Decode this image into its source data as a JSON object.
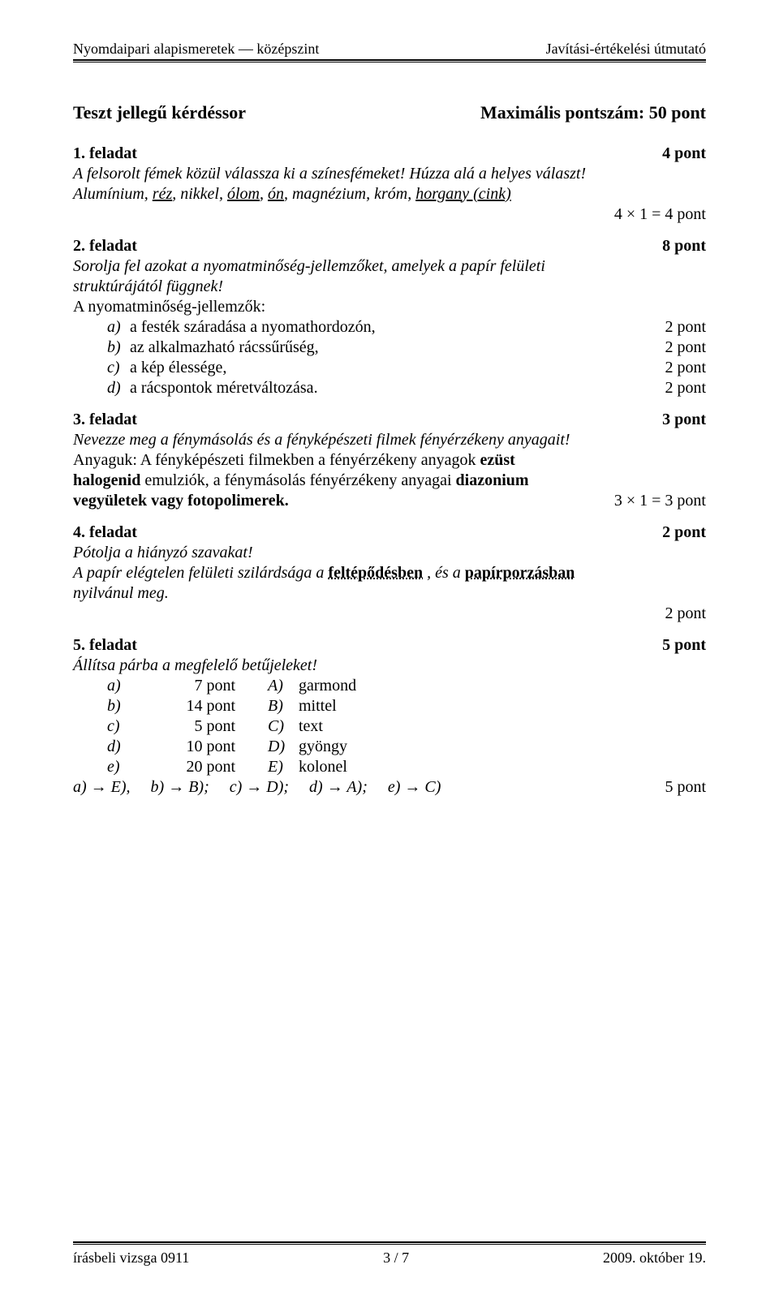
{
  "header": {
    "left": "Nyomdaipari alapismeretek — középszint",
    "right": "Javítási-értékelési útmutató"
  },
  "title": {
    "left": "Teszt jellegű kérdéssor",
    "right": "Maximális pontszám: 50 pont"
  },
  "t1": {
    "head_left": "1. feladat",
    "head_right": "4 pont",
    "q": "A felsorolt fémek közül válassza ki a színesfémeket! Húzza alá a helyes választ!",
    "ans_pre": "Alumínium, ",
    "u1": "réz",
    "mid1": ", nikkel, ",
    "u2": "ólom",
    "mid2": ", ",
    "u3": "ón",
    "mid3": ", magnézium, króm, ",
    "u4": "horgany (cink)",
    "score": "4 × 1 = 4 pont"
  },
  "t2": {
    "head_left": "2. feladat",
    "head_right": "8 pont",
    "q1": "Sorolja fel azokat a nyomatminőség-jellemzőket, amelyek a papír felületi",
    "q2": "struktúrájától függnek!",
    "intro": "A nyomatminőség-jellemzők:",
    "a": "a festék száradása a nyomathordozón,",
    "a_pt": "2 pont",
    "b": "az alkalmazható rácssűrűség,",
    "b_pt": "2 pont",
    "c": "a kép élessége,",
    "c_pt": "2 pont",
    "d": "a rácspontok méretváltozása.",
    "d_pt": "2 pont"
  },
  "t3": {
    "head_left": "3. feladat",
    "head_right": "3 pont",
    "q": "Nevezze meg a fénymásolás és a fényképészeti filmek fényérzékeny anyagait!",
    "l1a": "Anyaguk: A fényképészeti filmekben a fényérzékeny anyagok ",
    "l1b": "ezüst",
    "l2a": "halogenid ",
    "l2b": "emulziók, a fénymásolás fényérzékeny anyagai ",
    "l2c": "diazonium",
    "l3a": "vegyületek vagy fotopolimerek.",
    "score": "3 × 1 = 3 pont"
  },
  "t4": {
    "head_left": "4. feladat",
    "head_right": "2 pont",
    "q": "Pótolja a hiányzó szavakat!",
    "l1a": "A papír elégtelen felületi szilárdsága a  ",
    "fill1": "feltépődésben",
    "l1b": "  , és a  ",
    "fill2": "papírporzásban",
    "l2": "nyilvánul meg.",
    "score": "2 pont"
  },
  "t5": {
    "head_left": "5. feladat",
    "head_right": "5 pont",
    "q": "Állítsa párba a megfelelő betűjeleket!",
    "rows": [
      {
        "l1": "a)",
        "l2": "7 pont",
        "l3": "A)",
        "l4": "garmond"
      },
      {
        "l1": "b)",
        "l2": "14 pont",
        "l3": "B)",
        "l4": "mittel"
      },
      {
        "l1": "c)",
        "l2": "5 pont",
        "l3": "C)",
        "l4": "text"
      },
      {
        "l1": "d)",
        "l2": "10 pont",
        "l3": "D)",
        "l4": "gyöngy"
      },
      {
        "l1": "e)",
        "l2": "20 pont",
        "l3": "E)",
        "l4": "kolonel"
      }
    ],
    "ans": "a) → E),     b) → B);     c) → D);     d) → A);     e) → C)",
    "score": "5 pont"
  },
  "footer": {
    "left": "írásbeli vizsga 0911",
    "center": "3 / 7",
    "right": "2009. október 19."
  }
}
